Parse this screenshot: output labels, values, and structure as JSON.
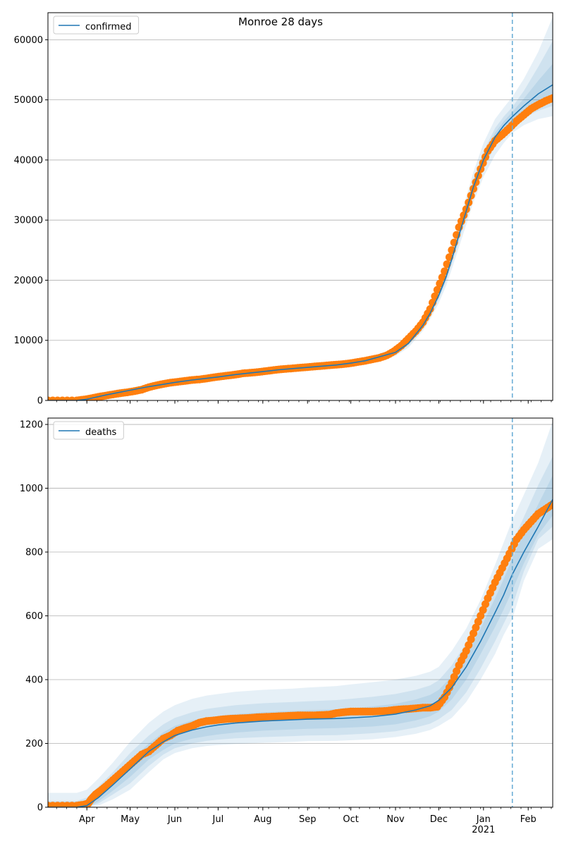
{
  "figure": {
    "title": "Monroe 28 days"
  },
  "colors": {
    "model": "#1f77b4",
    "band": "#1f77b4",
    "observed": "#ff7f0e",
    "grid": "#b0b0b0",
    "vline": "#6baed6"
  },
  "chart_data": [
    {
      "type": "line",
      "name": "confirmed-panel",
      "legend": "confirmed",
      "legend_position": "top-left",
      "grid": "y",
      "xlim": [
        0,
        350
      ],
      "ylim": [
        0,
        64500
      ],
      "yticks": [
        0,
        10000,
        20000,
        30000,
        40000,
        50000,
        60000
      ],
      "ytick_labels": [
        "0",
        "10000",
        "20000",
        "30000",
        "40000",
        "50000",
        "60000"
      ],
      "xticks": [
        27,
        57,
        88,
        118,
        149,
        180,
        210,
        241,
        271,
        302,
        333
      ],
      "xtick_labels": [
        "Apr",
        "May",
        "Jun",
        "Jul",
        "Aug",
        "Sep",
        "Oct",
        "Nov",
        "Dec",
        "Jan\n2021",
        "Feb"
      ],
      "forecast_start_x": 322,
      "model": {
        "x": [
          0,
          20,
          27,
          40,
          57,
          70,
          88,
          100,
          118,
          130,
          149,
          160,
          180,
          200,
          210,
          220,
          241,
          250,
          255,
          260,
          265,
          271,
          276,
          280,
          285,
          290,
          295,
          302,
          310,
          316,
          322,
          330,
          340,
          350
        ],
        "y": [
          0,
          0,
          200,
          900,
          1700,
          2300,
          3000,
          3400,
          3900,
          4300,
          4800,
          5100,
          5500,
          5900,
          6200,
          6600,
          8000,
          9500,
          11000,
          12500,
          14500,
          17500,
          20500,
          23500,
          27500,
          31500,
          35500,
          40000,
          43800,
          45700,
          47200,
          49000,
          51000,
          52500
        ]
      },
      "bands": [
        {
          "upper": [
            0,
            0,
            300,
            1100,
            2000,
            2700,
            3400,
            3900,
            4400,
            4800,
            5300,
            5600,
            6000,
            6400,
            6700,
            7100,
            8600,
            10200,
            11800,
            13400,
            15500,
            18800,
            22000,
            25200,
            29500,
            33800,
            38000,
            42800,
            46800,
            48700,
            50500,
            53500,
            58000,
            63800
          ],
          "lower": [
            0,
            0,
            100,
            700,
            1400,
            1900,
            2600,
            2900,
            3400,
            3800,
            4300,
            4600,
            5000,
            5400,
            5700,
            6100,
            7400,
            8800,
            10200,
            11600,
            13500,
            16200,
            19000,
            21800,
            25500,
            29200,
            33000,
            37200,
            40800,
            42800,
            44500,
            45800,
            46800,
            47300
          ]
        },
        {
          "upper": [
            0,
            0,
            250,
            1000,
            1850,
            2500,
            3200,
            3650,
            4150,
            4550,
            5050,
            5350,
            5750,
            6150,
            6450,
            6850,
            8300,
            9850,
            11400,
            12950,
            15000,
            18150,
            21250,
            24350,
            28500,
            32650,
            36750,
            41400,
            45300,
            47200,
            48800,
            51500,
            55500,
            59800
          ],
          "lower": [
            0,
            0,
            150,
            800,
            1550,
            2100,
            2800,
            3150,
            3650,
            4050,
            4550,
            4850,
            5250,
            5650,
            5950,
            6350,
            7700,
            9150,
            10600,
            12050,
            14000,
            16850,
            19750,
            22650,
            26500,
            30350,
            34250,
            38600,
            42300,
            44200,
            45800,
            47000,
            48200,
            49000
          ]
        },
        {
          "upper": [
            0,
            0,
            220,
            950,
            1780,
            2400,
            3100,
            3520,
            4020,
            4420,
            4920,
            5220,
            5620,
            6020,
            6320,
            6720,
            8150,
            9680,
            11200,
            12720,
            14750,
            17820,
            20870,
            23920,
            28000,
            32080,
            36120,
            40700,
            44500,
            46400,
            48000,
            50200,
            53200,
            56000
          ],
          "lower": [
            0,
            0,
            180,
            850,
            1620,
            2200,
            2900,
            3280,
            3780,
            4180,
            4680,
            4980,
            5380,
            5780,
            6080,
            6480,
            7850,
            9320,
            10800,
            12280,
            14250,
            17180,
            20130,
            23080,
            27000,
            30920,
            34880,
            39300,
            43100,
            45000,
            46500,
            47900,
            49300,
            50300
          ]
        }
      ],
      "observed": {
        "x": [
          0,
          10,
          20,
          25,
          30,
          35,
          40,
          45,
          50,
          55,
          60,
          65,
          70,
          75,
          80,
          85,
          90,
          95,
          100,
          105,
          110,
          115,
          120,
          125,
          130,
          135,
          140,
          145,
          150,
          155,
          160,
          165,
          170,
          175,
          180,
          185,
          190,
          195,
          200,
          205,
          210,
          215,
          220,
          225,
          230,
          235,
          240,
          245,
          250,
          255,
          260,
          265,
          270,
          275,
          280,
          285,
          290,
          295,
          300,
          305,
          310,
          315,
          320,
          325,
          330,
          335,
          340,
          345,
          350
        ],
        "y": [
          0,
          0,
          0,
          150,
          350,
          600,
          800,
          1000,
          1200,
          1350,
          1550,
          1800,
          2200,
          2500,
          2750,
          2950,
          3100,
          3250,
          3400,
          3500,
          3650,
          3850,
          4000,
          4150,
          4300,
          4500,
          4600,
          4700,
          4850,
          5000,
          5150,
          5250,
          5350,
          5450,
          5550,
          5650,
          5750,
          5850,
          5950,
          6050,
          6200,
          6400,
          6600,
          6850,
          7100,
          7500,
          8200,
          9100,
          10300,
          11500,
          13000,
          15200,
          18400,
          21500,
          25000,
          28800,
          31800,
          35200,
          38500,
          41500,
          43200,
          44200,
          45300,
          46500,
          47500,
          48500,
          49200,
          49800,
          50300
        ]
      }
    },
    {
      "type": "line",
      "name": "deaths-panel",
      "legend": "deaths",
      "legend_position": "top-left",
      "grid": "y",
      "xlim": [
        0,
        350
      ],
      "ylim": [
        0,
        1220
      ],
      "yticks": [
        0,
        200,
        400,
        600,
        800,
        1000,
        1200
      ],
      "ytick_labels": [
        "0",
        "200",
        "400",
        "600",
        "800",
        "1000",
        "1200"
      ],
      "xticks": [
        27,
        57,
        88,
        118,
        149,
        180,
        210,
        241,
        271,
        302,
        333
      ],
      "xtick_labels": [
        "Apr",
        "May",
        "Jun",
        "Jul",
        "Aug",
        "Sep",
        "Oct",
        "Nov",
        "Dec",
        "Jan\n2021",
        "Feb"
      ],
      "forecast_start_x": 322,
      "model": {
        "x": [
          0,
          20,
          27,
          35,
          45,
          57,
          70,
          80,
          88,
          100,
          110,
          118,
          130,
          149,
          170,
          180,
          200,
          210,
          225,
          241,
          255,
          265,
          271,
          280,
          290,
          300,
          310,
          316,
          322,
          330,
          340,
          350
        ],
        "y": [
          0,
          0,
          5,
          30,
          70,
          120,
          175,
          205,
          225,
          242,
          252,
          258,
          264,
          270,
          274,
          276,
          278,
          280,
          284,
          292,
          305,
          318,
          335,
          375,
          440,
          520,
          610,
          665,
          730,
          800,
          880,
          965
        ]
      },
      "bands": [
        {
          "upper": [
            45,
            45,
            55,
            90,
            140,
            205,
            265,
            300,
            320,
            340,
            350,
            355,
            362,
            368,
            372,
            375,
            380,
            385,
            392,
            400,
            412,
            425,
            440,
            490,
            560,
            650,
            760,
            830,
            900,
            980,
            1080,
            1210
          ],
          "lower": [
            0,
            0,
            0,
            5,
            25,
            55,
            110,
            150,
            170,
            185,
            192,
            195,
            198,
            202,
            205,
            207,
            208,
            210,
            213,
            220,
            230,
            242,
            255,
            280,
            330,
            400,
            480,
            540,
            590,
            710,
            810,
            840
          ]
        },
        {
          "upper": [
            20,
            20,
            30,
            65,
            110,
            170,
            225,
            260,
            280,
            298,
            308,
            313,
            320,
            326,
            330,
            332,
            336,
            340,
            346,
            355,
            368,
            382,
            398,
            445,
            515,
            600,
            700,
            765,
            830,
            910,
            1010,
            1100
          ],
          "lower": [
            0,
            0,
            0,
            12,
            40,
            75,
            130,
            165,
            185,
            200,
            208,
            212,
            216,
            220,
            223,
            225,
            226,
            228,
            232,
            238,
            250,
            262,
            276,
            305,
            360,
            435,
            520,
            575,
            630,
            740,
            840,
            880
          ]
        },
        {
          "upper": [
            8,
            8,
            15,
            45,
            90,
            145,
            200,
            235,
            255,
            272,
            281,
            286,
            292,
            298,
            302,
            304,
            307,
            310,
            316,
            324,
            338,
            352,
            368,
            410,
            478,
            560,
            655,
            715,
            780,
            860,
            950,
            1040
          ],
          "lower": [
            0,
            0,
            0,
            18,
            52,
            95,
            150,
            180,
            200,
            215,
            223,
            228,
            234,
            240,
            244,
            246,
            248,
            250,
            253,
            260,
            272,
            285,
            300,
            338,
            400,
            480,
            565,
            620,
            680,
            765,
            855,
            915
          ]
        }
      ],
      "observed": {
        "x": [
          0,
          10,
          20,
          25,
          28,
          30,
          33,
          36,
          40,
          45,
          50,
          55,
          60,
          65,
          70,
          75,
          80,
          85,
          90,
          95,
          100,
          105,
          110,
          115,
          120,
          125,
          130,
          135,
          140,
          145,
          150,
          155,
          160,
          165,
          170,
          175,
          180,
          185,
          190,
          195,
          200,
          205,
          210,
          215,
          220,
          225,
          230,
          235,
          240,
          245,
          250,
          255,
          260,
          265,
          270,
          275,
          280,
          285,
          290,
          295,
          300,
          305,
          310,
          315,
          320,
          325,
          330,
          335,
          340,
          345,
          350
        ],
        "y": [
          5,
          5,
          5,
          8,
          12,
          25,
          40,
          50,
          65,
          85,
          105,
          125,
          145,
          165,
          175,
          195,
          215,
          225,
          240,
          248,
          255,
          265,
          270,
          272,
          275,
          277,
          278,
          279,
          280,
          282,
          283,
          284,
          285,
          286,
          287,
          288,
          288,
          288,
          289,
          290,
          295,
          298,
          300,
          300,
          300,
          300,
          301,
          302,
          305,
          307,
          308,
          310,
          312,
          312,
          315,
          345,
          390,
          445,
          490,
          545,
          600,
          655,
          705,
          750,
          795,
          840,
          870,
          895,
          920,
          935,
          950
        ]
      }
    }
  ]
}
